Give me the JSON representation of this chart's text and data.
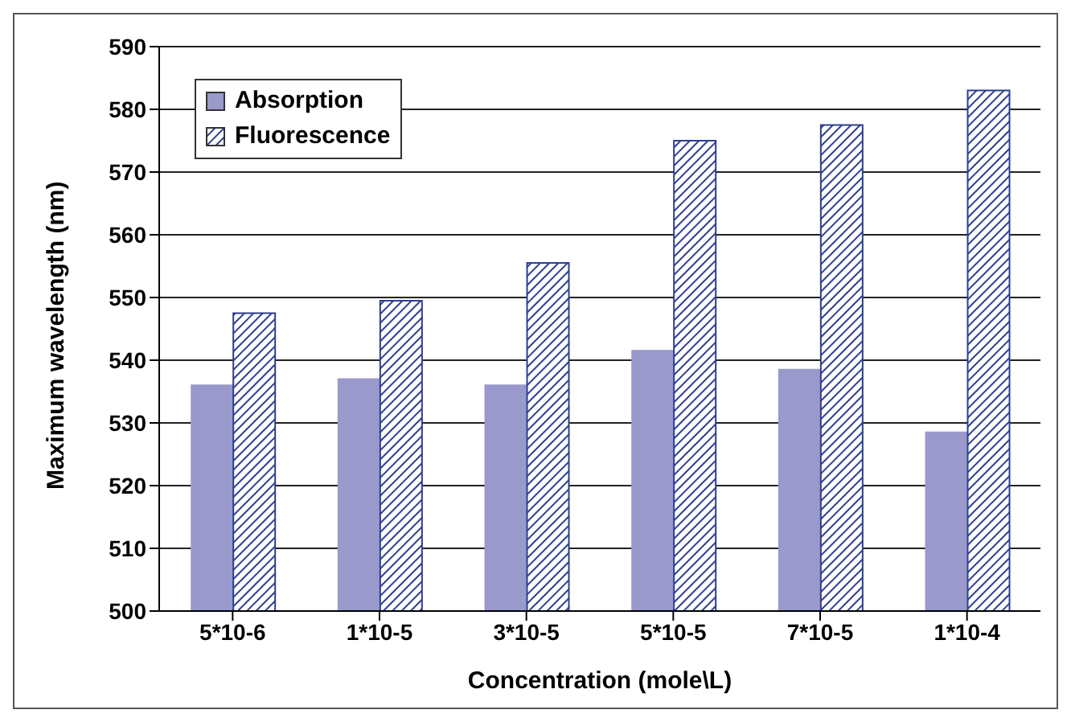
{
  "chart_data": {
    "type": "bar",
    "xlabel": "Concentration (mole\\L)",
    "ylabel": "Maximum wavelength (nm)",
    "categories": [
      "5*10-6",
      "1*10-5",
      "3*10-5",
      "5*10-5",
      "7*10-5",
      "1*10-4"
    ],
    "series": [
      {
        "name": "Absorption",
        "color": "#9999cc",
        "values": [
          536,
          537,
          536,
          541.5,
          538.5,
          528.5
        ]
      },
      {
        "name": "Fluorescence",
        "color": "#2e3f8f",
        "values": [
          547.5,
          549.5,
          555.5,
          575,
          577.5,
          583
        ]
      }
    ],
    "ylim": [
      500,
      590
    ],
    "yticks": [
      500,
      510,
      520,
      530,
      540,
      550,
      560,
      570,
      580,
      590
    ],
    "grid": "y",
    "legend": "top left"
  }
}
